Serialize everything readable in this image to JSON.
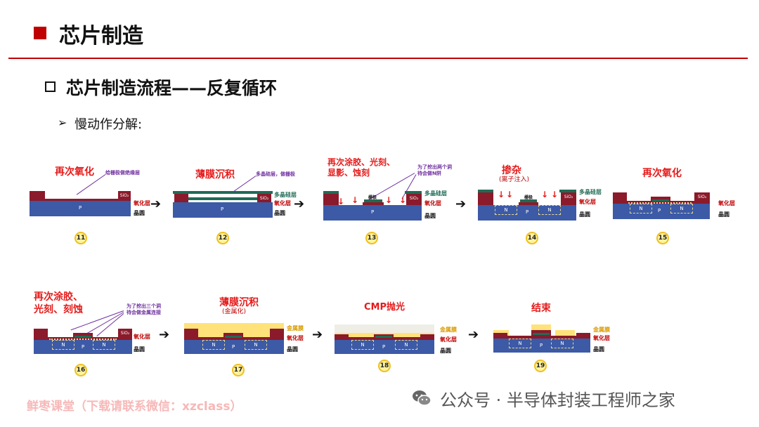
{
  "header": {
    "title": "芯片制造"
  },
  "section": {
    "title": "芯片制造流程——反复循环"
  },
  "bullet": {
    "arrow": "➢",
    "text": "慢动作分解:"
  },
  "steps": [
    {
      "number": "11",
      "title": "再次氧化",
      "note": "给栅极做绝缘层",
      "side_labels": [
        "SiO₂",
        "氧化层",
        "晶圆"
      ],
      "wafer_label": "P"
    },
    {
      "number": "12",
      "title": "薄膜沉积",
      "note": "多晶硅层，做栅极",
      "side_labels": [
        "SiO₂",
        "多晶硅层",
        "氧化层",
        "晶圆"
      ],
      "wafer_label": "P"
    },
    {
      "number": "13",
      "title": "再次涂胶、光刻、显影、蚀刻",
      "title_lines": [
        "再次涂胶、光刻、",
        "显影、蚀刻"
      ],
      "note": "为了挖出两个洞待会做N阱",
      "note_lines": [
        "为了挖出两个洞",
        "待会做N阱"
      ],
      "inner_label": "栅极",
      "side_labels": [
        "SiO₂",
        "多晶硅层",
        "氧化层",
        "晶圆"
      ],
      "wafer_label": "P"
    },
    {
      "number": "14",
      "title": "掺杂",
      "subtitle": "(离子注入)",
      "inner_label": "栅极",
      "side_labels": [
        "SiO₂",
        "多晶硅层",
        "氧化层",
        "晶圆"
      ],
      "wafer_label": "P",
      "well_label": "N"
    },
    {
      "number": "15",
      "title": "再次氧化",
      "side_labels": [
        "SiO₂",
        "氧化层",
        "晶圆"
      ],
      "wafer_label": "P",
      "well_label": "N"
    },
    {
      "number": "16",
      "title": "再次涂胶、光刻、刻蚀",
      "title_lines": [
        "再次涂胶、",
        "光刻、刻蚀"
      ],
      "note_lines": [
        "为了挖出三个洞",
        "待会做金属连接"
      ],
      "side_labels": [
        "SiO₂",
        "氧化层",
        "晶圆"
      ],
      "wafer_label": "P",
      "well_label": "N"
    },
    {
      "number": "17",
      "title": "薄膜沉积",
      "subtitle": "(金属化)",
      "side_labels": [
        "金属膜",
        "氧化层",
        "晶圆"
      ],
      "wafer_label": "P",
      "well_label": "N"
    },
    {
      "number": "18",
      "title": "CMP抛光",
      "side_labels": [
        "金属膜",
        "氧化层",
        "晶圆"
      ],
      "wafer_label": "P",
      "well_label": "N"
    },
    {
      "number": "19",
      "title": "结束",
      "side_labels": [
        "金属膜",
        "氧化层",
        "晶圆"
      ],
      "wafer_label": "P",
      "well_label": "N"
    }
  ],
  "flow_arrow": "➔",
  "watermark": "鲜枣课堂（下载请联系微信：xzclass）",
  "credit": "公众号 · 半导体封装工程师之家",
  "colors": {
    "accent": "#c00000",
    "wafer": "#3c5aa6",
    "oxide": "#8b1a2b",
    "poly": "#1f6b55",
    "metal": "#ffe27a",
    "note": "#7030a0",
    "label": "#e51b1b"
  }
}
